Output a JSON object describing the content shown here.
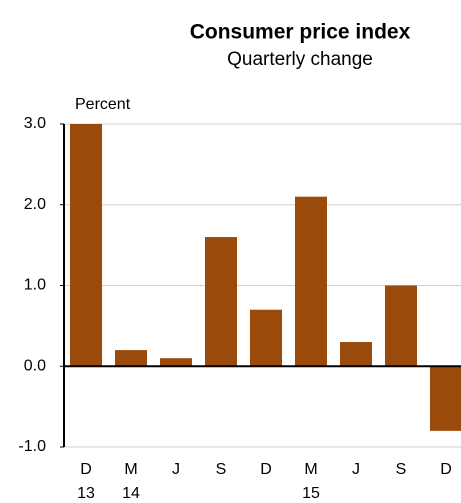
{
  "chart_data": {
    "type": "bar",
    "title": "Consumer price index",
    "subtitle": "Quarterly change",
    "y_unit_label": "Percent",
    "categories": [
      "D",
      "M",
      "J",
      "S",
      "D",
      "M",
      "J",
      "S",
      "D"
    ],
    "category_years": [
      "13",
      "14",
      null,
      null,
      null,
      "15",
      null,
      null,
      null
    ],
    "values": [
      3.0,
      0.2,
      0.1,
      1.6,
      0.7,
      2.1,
      0.3,
      1.0,
      -0.8
    ],
    "color": "#9a4a0b",
    "ylim": [
      -1,
      3
    ],
    "yticks": [
      {
        "value": -1,
        "label": "-1.0"
      },
      {
        "value": 0,
        "label": "0.0"
      },
      {
        "value": 1,
        "label": "1.0"
      },
      {
        "value": 2,
        "label": "2.0"
      },
      {
        "value": 3,
        "label": "3.0"
      }
    ],
    "grid": true
  }
}
